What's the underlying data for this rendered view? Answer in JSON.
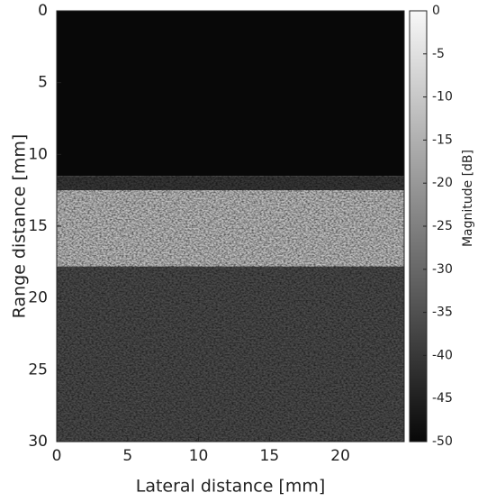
{
  "chart_data": {
    "type": "heatmap",
    "x_label": "Lateral distance [mm]",
    "y_label": "Range distance [mm]",
    "xlim": [
      0,
      24.5
    ],
    "xticks": [
      0,
      5,
      10,
      15,
      20
    ],
    "ylim": [
      0,
      30
    ],
    "y_reversed": true,
    "yticks": [
      0,
      5,
      10,
      15,
      20,
      25,
      30
    ],
    "colormap": "gray",
    "regions": [
      {
        "y": [
          0,
          11.5
        ],
        "value": -50
      },
      {
        "y": [
          11.5,
          12.5
        ],
        "value": -40
      },
      {
        "y": [
          12.5,
          17.8
        ],
        "value": -12
      },
      {
        "y": [
          17.8,
          30
        ],
        "value": -36
      }
    ],
    "colorbar": {
      "label": "Magnitude [dB]",
      "lim": [
        -50,
        0
      ],
      "ticks": [
        0,
        -5,
        -10,
        -15,
        -20,
        -25,
        -30,
        -35,
        -40,
        -45,
        -50
      ]
    }
  }
}
